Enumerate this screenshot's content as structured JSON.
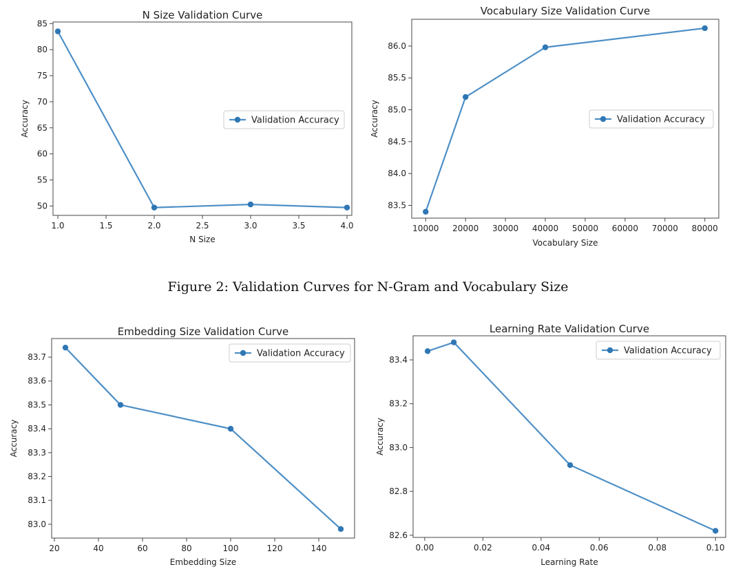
{
  "caption": "Figure 2: Validation Curves for N-Gram and Vocabulary Size",
  "colors": {
    "series": "#4d8fc6",
    "marker": "#2f77b4",
    "axes": "#444444",
    "text": "#222222"
  },
  "chart_data": [
    {
      "type": "line",
      "title": "N Size Validation Curve",
      "xlabel": "N Size",
      "ylabel": "Accuracy",
      "xlim": [
        0.95,
        4.05
      ],
      "ylim": [
        48.2,
        85.3
      ],
      "xticks": [
        1.0,
        1.5,
        2.0,
        2.5,
        3.0,
        3.5,
        4.0
      ],
      "xtick_labels": [
        "1.0",
        "1.5",
        "2.0",
        "2.5",
        "3.0",
        "3.5",
        "4.0"
      ],
      "yticks": [
        50,
        55,
        60,
        65,
        70,
        75,
        80,
        85
      ],
      "ytick_labels": [
        "50",
        "55",
        "60",
        "65",
        "70",
        "75",
        "80",
        "85"
      ],
      "legend_position": "center-right",
      "grid": false,
      "series": [
        {
          "name": "Validation Accuracy",
          "x": [
            1,
            2,
            3,
            4
          ],
          "y": [
            83.5,
            49.7,
            50.3,
            49.7
          ]
        }
      ]
    },
    {
      "type": "line",
      "title": "Vocabulary Size Validation Curve",
      "xlabel": "Vocabulary Size",
      "ylabel": "Accuracy",
      "xlim": [
        6500,
        83500
      ],
      "ylim": [
        83.3,
        86.42
      ],
      "xticks": [
        10000,
        20000,
        30000,
        40000,
        50000,
        60000,
        70000,
        80000
      ],
      "xtick_labels": [
        "10000",
        "20000",
        "30000",
        "40000",
        "50000",
        "60000",
        "70000",
        "80000"
      ],
      "yticks": [
        83.5,
        84.0,
        84.5,
        85.0,
        85.5,
        86.0
      ],
      "ytick_labels": [
        "83.5",
        "84.0",
        "84.5",
        "85.0",
        "85.5",
        "86.0"
      ],
      "legend_position": "center-right",
      "grid": false,
      "series": [
        {
          "name": "Validation Accuracy",
          "x": [
            10000,
            20000,
            40000,
            80000
          ],
          "y": [
            83.4,
            85.2,
            85.98,
            86.28
          ]
        }
      ]
    },
    {
      "type": "line",
      "title": "Embedding Size Validation Curve",
      "xlabel": "Embedding Size",
      "ylabel": "Accuracy",
      "xlim": [
        18.75,
        156.25
      ],
      "ylim": [
        82.942,
        83.778
      ],
      "xticks": [
        20,
        40,
        60,
        80,
        100,
        120,
        140
      ],
      "xtick_labels": [
        "20",
        "40",
        "60",
        "80",
        "100",
        "120",
        "140"
      ],
      "yticks": [
        83.0,
        83.1,
        83.2,
        83.3,
        83.4,
        83.5,
        83.6,
        83.7
      ],
      "ytick_labels": [
        "83.0",
        "83.1",
        "83.2",
        "83.3",
        "83.4",
        "83.5",
        "83.6",
        "83.7"
      ],
      "legend_position": "top-right",
      "grid": false,
      "series": [
        {
          "name": "Validation Accuracy",
          "x": [
            25,
            50,
            100,
            150
          ],
          "y": [
            83.74,
            83.5,
            83.4,
            82.98
          ]
        }
      ]
    },
    {
      "type": "line",
      "title": "Learning Rate Validation Curve",
      "xlabel": "Learning Rate",
      "ylabel": "Accuracy",
      "xlim": [
        -0.004,
        0.1035
      ],
      "ylim": [
        82.59,
        83.51
      ],
      "xticks": [
        0.0,
        0.02,
        0.04,
        0.06,
        0.08,
        0.1
      ],
      "xtick_labels": [
        "0.00",
        "0.02",
        "0.04",
        "0.06",
        "0.08",
        "0.10"
      ],
      "yticks": [
        82.6,
        82.8,
        83.0,
        83.2,
        83.4
      ],
      "ytick_labels": [
        "82.6",
        "82.8",
        "83.0",
        "83.2",
        "83.4"
      ],
      "legend_position": "top-right",
      "grid": false,
      "series": [
        {
          "name": "Validation Accuracy",
          "x": [
            0.001,
            0.01,
            0.05,
            0.1
          ],
          "y": [
            83.44,
            83.48,
            82.92,
            82.62
          ]
        }
      ]
    }
  ]
}
